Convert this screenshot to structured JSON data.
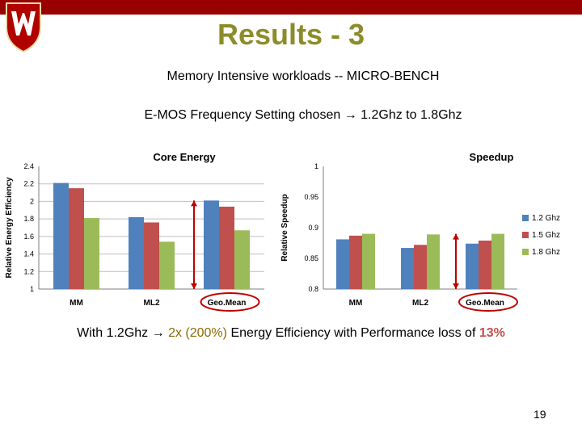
{
  "slide": {
    "title": "Results - 3",
    "subtitle1": "Memory Intensive workloads -- MICRO-BENCH",
    "subtitle2_prefix": "E-MOS Frequency Setting chosen",
    "subtitle2_suffix": "1.2Ghz to 1.8Ghz",
    "bottom_prefix": "With 1.2Ghz",
    "bottom_highlight": "2x (200%)",
    "bottom_middle": "Energy Efficiency  with Performance loss of",
    "bottom_loss": "13%",
    "page_number": "19",
    "arrow_glyph": "→",
    "colors": {
      "topbar": "#990000",
      "title": "#8c8c2a",
      "s1": "#4f81bd",
      "s2": "#c0504d",
      "s3": "#9bbb59",
      "annotation": "#c00000"
    }
  },
  "chart_data": [
    {
      "type": "bar",
      "title": "Core Energy",
      "ylabel": "Relative Energy Efficiency",
      "categories": [
        "MM",
        "ML2",
        "Geo.Mean"
      ],
      "ylim": [
        1,
        2.4
      ],
      "yticks": [
        "2.4",
        "2.2",
        "2",
        "1.8",
        "1.6",
        "1.4",
        "1.2",
        "1"
      ],
      "grid": true,
      "series": [
        {
          "name": "1.2 Ghz",
          "values": [
            2.21,
            1.82,
            2.01
          ]
        },
        {
          "name": "1.5 Ghz",
          "values": [
            2.15,
            1.76,
            1.94
          ]
        },
        {
          "name": "1.8 Ghz",
          "values": [
            1.81,
            1.54,
            1.67
          ]
        }
      ]
    },
    {
      "type": "bar",
      "title": "Speedup",
      "ylabel": "Relative Speedup",
      "categories": [
        "MM",
        "ML2",
        "Geo.Mean"
      ],
      "ylim": [
        0.8,
        1
      ],
      "yticks": [
        "1",
        "0.95",
        "0.9",
        "0.85",
        "0.8"
      ],
      "grid": false,
      "legend": "right",
      "series": [
        {
          "name": "1.2 Ghz",
          "values": [
            0.881,
            0.867,
            0.874
          ]
        },
        {
          "name": "1.5 Ghz",
          "values": [
            0.887,
            0.872,
            0.879
          ]
        },
        {
          "name": "1.8 Ghz",
          "values": [
            0.89,
            0.889,
            0.89
          ]
        }
      ]
    }
  ]
}
